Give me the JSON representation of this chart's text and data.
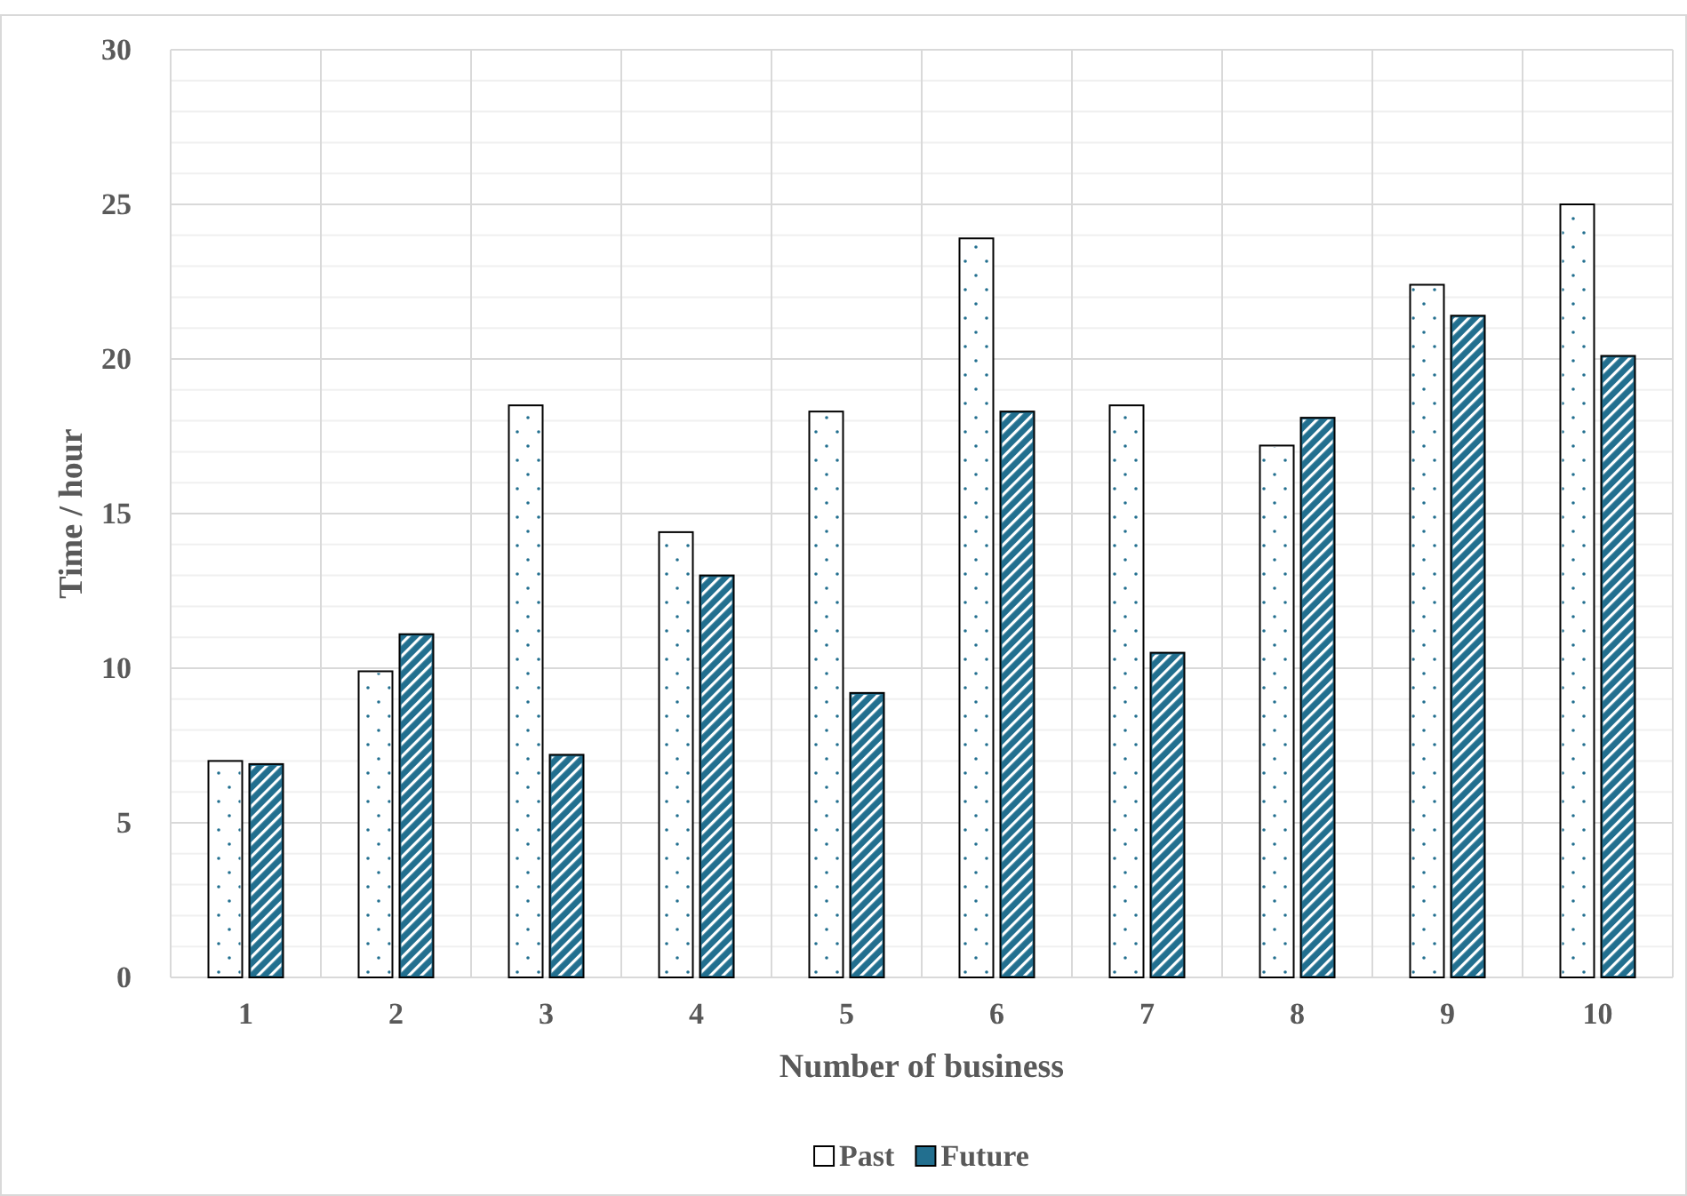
{
  "chart_data": {
    "type": "bar",
    "xlabel": "Number of business",
    "ylabel": "Time / hour",
    "categories": [
      "1",
      "2",
      "3",
      "4",
      "5",
      "6",
      "7",
      "8",
      "9",
      "10"
    ],
    "series": [
      {
        "name": "Past",
        "color": "#ffffff",
        "values": [
          7.0,
          9.9,
          18.5,
          14.4,
          18.3,
          23.9,
          18.5,
          17.2,
          22.4,
          25.0
        ]
      },
      {
        "name": "Future",
        "color": "#226f8f",
        "values": [
          6.9,
          11.1,
          7.2,
          13.0,
          9.2,
          18.3,
          10.5,
          18.1,
          21.4,
          20.1
        ]
      }
    ],
    "ylim": [
      0,
      30
    ],
    "yticks": [
      0,
      5,
      10,
      15,
      20,
      25,
      30
    ],
    "grid": true,
    "legend": "bottom"
  }
}
